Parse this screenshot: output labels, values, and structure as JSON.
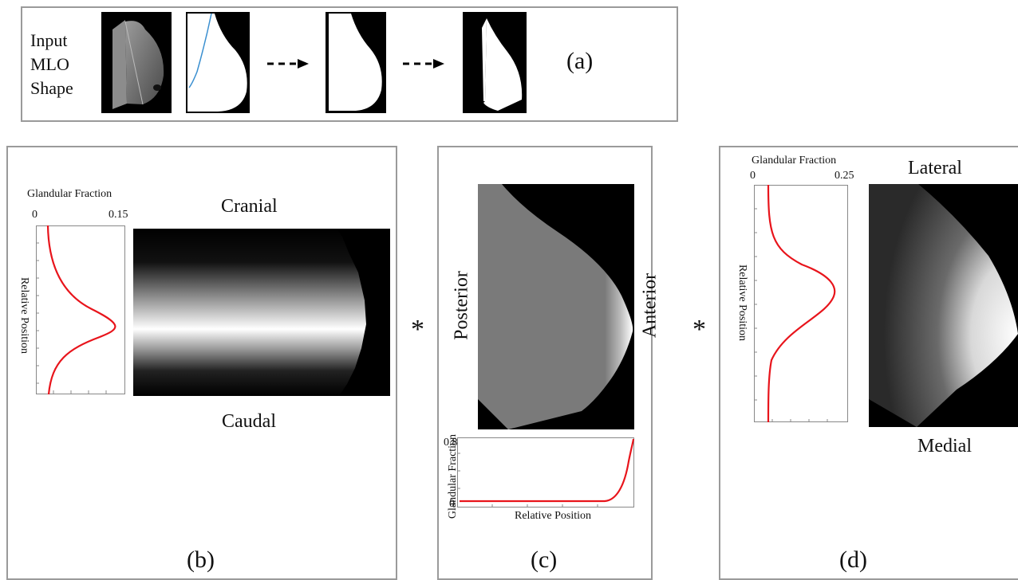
{
  "panel_a": {
    "input_label_lines": [
      "Input",
      "MLO",
      "Shape"
    ],
    "letter": "(a)"
  },
  "panel_b": {
    "letter": "(b)",
    "top": "Cranial",
    "bottom": "Caudal",
    "chart_title": "Glandular Fraction",
    "tick_min": "0",
    "tick_max": "0.15",
    "ylabel": "Relative Position"
  },
  "panel_c": {
    "letter": "(c)",
    "left": "Posterior",
    "right": "Anterior",
    "ylabel": "Glandular Fraction",
    "xlabel": "Relative Position",
    "tick_top": "0.8",
    "tick_bottom": "0"
  },
  "panel_d": {
    "letter": "(d)",
    "top": "Lateral",
    "bottom": "Medial",
    "chart_title": "Glandular Fraction",
    "tick_min": "0",
    "tick_max": "0.25",
    "ylabel": "Relative Position"
  },
  "operators": [
    "*",
    "*"
  ],
  "colors": {
    "curve": "#e8141b",
    "mesh_line": "#3a8fd0",
    "frame": "#9a9a9a"
  }
}
